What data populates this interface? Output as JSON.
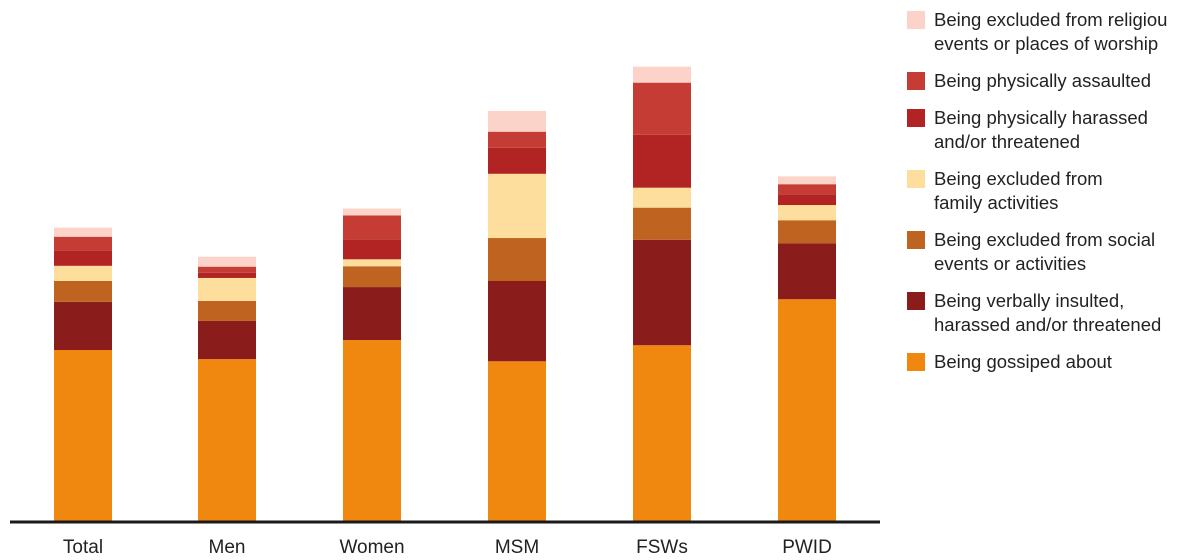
{
  "chart_data": {
    "type": "bar",
    "stacked": true,
    "categories": [
      "Total",
      "Men",
      "Women",
      "MSM",
      "FSWs",
      "PWID"
    ],
    "ylim": [
      0,
      100
    ],
    "grid": false,
    "legend_position": "right",
    "series": [
      {
        "name": "Being gossiped about",
        "color": "#F0870F",
        "values": [
          39.4,
          37.3,
          41.7,
          36.8,
          40.5,
          51.1
        ]
      },
      {
        "name": "Being verbally insulted,\nharassed and/or threatened",
        "color": "#8B1C1C",
        "values": [
          11.1,
          8.8,
          12.2,
          18.5,
          24.3,
          12.9
        ]
      },
      {
        "name": "Being excluded from social\nevents or activities",
        "color": "#BE6320",
        "values": [
          4.8,
          4.6,
          4.8,
          9.9,
          7.4,
          5.3
        ]
      },
      {
        "name": "Being excluded from\nfamily activities",
        "color": "#FDDE9C",
        "values": [
          3.5,
          5.3,
          1.6,
          14.8,
          4.6,
          3.5
        ]
      },
      {
        "name": "Being physically harassed\nand/or threatened",
        "color": "#B22323",
        "values": [
          3.5,
          1.2,
          4.6,
          6.0,
          12.2,
          2.5
        ]
      },
      {
        "name": "Being physically assaulted",
        "color": "#C43C33",
        "values": [
          3.2,
          1.4,
          5.5,
          3.7,
          12.0,
          2.3
        ]
      },
      {
        "name": "Being excluded from religiou\nevents or places of worship",
        "color": "#FBD3C8",
        "values": [
          2.1,
          2.3,
          1.6,
          4.8,
          3.7,
          1.8
        ]
      }
    ]
  }
}
